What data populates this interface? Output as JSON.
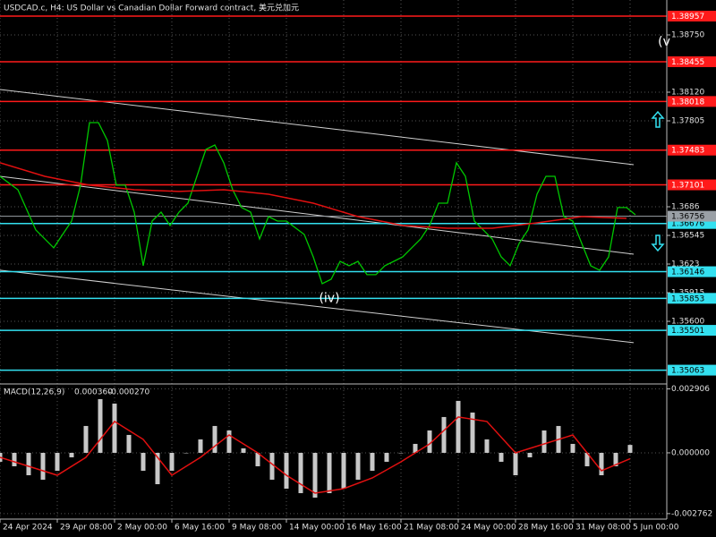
{
  "chart_data": [
    {
      "type": "line",
      "title": "USDCAD.c, H4:  US Dollar vs Canadian Dollar Forward contract, 美元兑加元",
      "xlim": [
        0,
        186
      ],
      "ylim": [
        1.34921,
        1.39134
      ],
      "xticks": [
        {
          "value": 0,
          "label": "24 Apr 2024"
        },
        {
          "value": 16,
          "label": "29 Apr 08:00"
        },
        {
          "value": 32,
          "label": "2 May 00:00"
        },
        {
          "value": 48,
          "label": "6 May 16:00"
        },
        {
          "value": 64,
          "label": "9 May 08:00"
        },
        {
          "value": 80,
          "label": "14 May 00:00"
        },
        {
          "value": 96,
          "label": "16 May 16:00"
        },
        {
          "value": 112,
          "label": "21 May 08:00"
        },
        {
          "value": 128,
          "label": "24 May 00:00"
        },
        {
          "value": 144,
          "label": "28 May 16:00"
        },
        {
          "value": 160,
          "label": "31 May 08:00"
        },
        {
          "value": 176,
          "label": "5 Jun 00:00"
        }
      ],
      "yticks": [
        {
          "value": 1.3875,
          "label": "1.38750"
        },
        {
          "value": 1.3812,
          "label": "1.38120"
        },
        1.37805,
        1.3686,
        1.36545,
        1.3623,
        1.35915,
        {
          "value": 1.356,
          "label": "1.35600"
        }
      ],
      "grid": true,
      "series": [
        {
          "color": "#00c800",
          "x": [
            0,
            5,
            10,
            15,
            20,
            22.5,
            25,
            27.5,
            30,
            32.5,
            35,
            37.5,
            40,
            42.5,
            45,
            47.5,
            50,
            52.5,
            55,
            57.5,
            60,
            62.5,
            65,
            67.5,
            70,
            72.5,
            75,
            77.5,
            80,
            85,
            87.5,
            90,
            92.5,
            95,
            97.5,
            100,
            102.5,
            105,
            107.5,
            110,
            112.5,
            115,
            117.5,
            120,
            122.5,
            125,
            127.5,
            130,
            132.5,
            135,
            137.5,
            140,
            142.5,
            145,
            147.5,
            150,
            152.5,
            155,
            157.5,
            160,
            162.5,
            165,
            167.5,
            170,
            172.5,
            175,
            177.5
          ],
          "values": [
            1.37195,
            1.37047,
            1.36605,
            1.36408,
            1.36703,
            1.37097,
            1.37785,
            1.37785,
            1.37589,
            1.37097,
            1.37097,
            1.36801,
            1.36211,
            1.36703,
            1.36801,
            1.36654,
            1.36801,
            1.369,
            1.37195,
            1.3749,
            1.37539,
            1.37343,
            1.37047,
            1.36851,
            1.36801,
            1.36506,
            1.36752,
            1.36703,
            1.36703,
            1.36555,
            1.36309,
            1.36014,
            1.36063,
            1.3626,
            1.36211,
            1.3626,
            1.36113,
            1.36113,
            1.36211,
            1.3626,
            1.36309,
            1.36408,
            1.36506,
            1.36654,
            1.369,
            1.369,
            1.37343,
            1.37195,
            1.36703,
            1.36605,
            1.36506,
            1.36309,
            1.36211,
            1.36457,
            1.36605,
            1.36998,
            1.37195,
            1.37195,
            1.36752,
            1.36703,
            1.36457,
            1.36211,
            1.36162,
            1.36309,
            1.36851,
            1.36851,
            1.36772
          ]
        },
        {
          "color": "#e01010",
          "x": [
            0,
            12.5,
            25,
            37.5,
            50,
            62.5,
            75,
            87.5,
            100,
            112.5,
            125,
            137.5,
            150,
            162.5,
            175
          ],
          "values": [
            1.37343,
            1.37195,
            1.37097,
            1.37047,
            1.37028,
            1.37047,
            1.36998,
            1.369,
            1.36752,
            1.36654,
            1.36624,
            1.36624,
            1.36683,
            1.36752,
            1.36732
          ]
        }
      ],
      "channels": [
        {
          "color": "#d0d0d0",
          "x": [
            0,
            177
          ],
          "values": [
            1.3815,
            1.37323
          ]
        },
        {
          "color": "#d0d0d0",
          "x": [
            0,
            177
          ],
          "values": [
            1.37195,
            1.36339
          ]
        },
        {
          "color": "#d0d0d0",
          "x": [
            0,
            177
          ],
          "values": [
            1.36162,
            1.35365
          ]
        }
      ],
      "levels": [
        {
          "value": 1.38957,
          "color": "#ff1a1a"
        },
        {
          "value": 1.38455,
          "color": "#ff1a1a"
        },
        {
          "value": 1.38018,
          "color": "#ff1a1a"
        },
        {
          "value": 1.37483,
          "color": "#ff1a1a"
        },
        {
          "value": 1.37101,
          "color": "#ff1a1a"
        },
        {
          "value": 1.36676,
          "color": "#33e0f0"
        },
        {
          "value": 1.36146,
          "color": "#33e0f0"
        },
        {
          "value": 1.35853,
          "color": "#33e0f0"
        },
        {
          "value": 1.35501,
          "color": "#33e0f0"
        },
        {
          "value": 1.35063,
          "color": "#33e0f0"
        }
      ],
      "current_price": {
        "value": 1.36756,
        "color": "#9aa0a6"
      },
      "annotations": [
        {
          "text": "(iv)",
          "x": 92,
          "y": 1.35853
        },
        {
          "text": "(v",
          "x": 185.5,
          "y": 1.38671
        }
      ]
    },
    {
      "type": "bar",
      "title": "MACD(12,26,9)",
      "readout": [
        {
          "value": 0.00036,
          "label": "0.000360"
        },
        {
          "value": -0.00027,
          "label": "-0.000270"
        }
      ],
      "xlim": [
        0,
        186
      ],
      "ylim": [
        -0.00293,
        0.00309
      ],
      "yticks": [
        0.002906,
        {
          "value": 0,
          "label": "0.000000"
        },
        -0.002762
      ],
      "series": [
        {
          "color": "#c8c8c8",
          "x": [
            0,
            4,
            8,
            12,
            16,
            20,
            24,
            28,
            32,
            36,
            40,
            44,
            48,
            52,
            56,
            60,
            64,
            68,
            72,
            76,
            80,
            84,
            88,
            92,
            96,
            100,
            104,
            108,
            112,
            116,
            120,
            124,
            128,
            132,
            136,
            140,
            144,
            148,
            152,
            156,
            160,
            164,
            168,
            172,
            176
          ],
          "values": [
            -0.000407,
            -0.000611,
            -0.001018,
            -0.001221,
            -0.000814,
            -0.000204,
            0.001221,
            0.002442,
            0.002239,
            0.000814,
            -0.000814,
            -0.001425,
            -0.000814,
            0,
            0.000611,
            0.001221,
            0.001018,
            0.000204,
            -0.000611,
            -0.001221,
            -0.001628,
            -0.001832,
            -0.002035,
            -0.001832,
            -0.001628,
            -0.001221,
            -0.000814,
            -0.000407,
            0,
            0.000407,
            0.001018,
            0.001628,
            0.002361,
            0.001832,
            0.000611,
            -0.000407,
            -0.001018,
            -0.000204,
            0.001018,
            0.001221,
            0.000407,
            -0.000611,
            -0.001018,
            -0.000611,
            0.00036
          ]
        },
        {
          "type": "line",
          "color": "#e01010",
          "x": [
            0,
            8,
            16,
            24,
            32,
            40,
            48,
            56,
            64,
            72,
            80,
            88,
            96,
            104,
            112,
            120,
            128,
            136,
            144,
            152,
            160,
            168,
            176
          ],
          "values": [
            -0.000204,
            -0.000611,
            -0.001018,
            -0.000204,
            0.001425,
            0.000611,
            -0.001018,
            -0.000204,
            0.000814,
            0,
            -0.001018,
            -0.001832,
            -0.001628,
            -0.00114,
            -0.000407,
            0.000407,
            0.001628,
            0.001425,
            0,
            0.000407,
            0.000814,
            -0.000814,
            -0.00027
          ]
        }
      ]
    }
  ]
}
